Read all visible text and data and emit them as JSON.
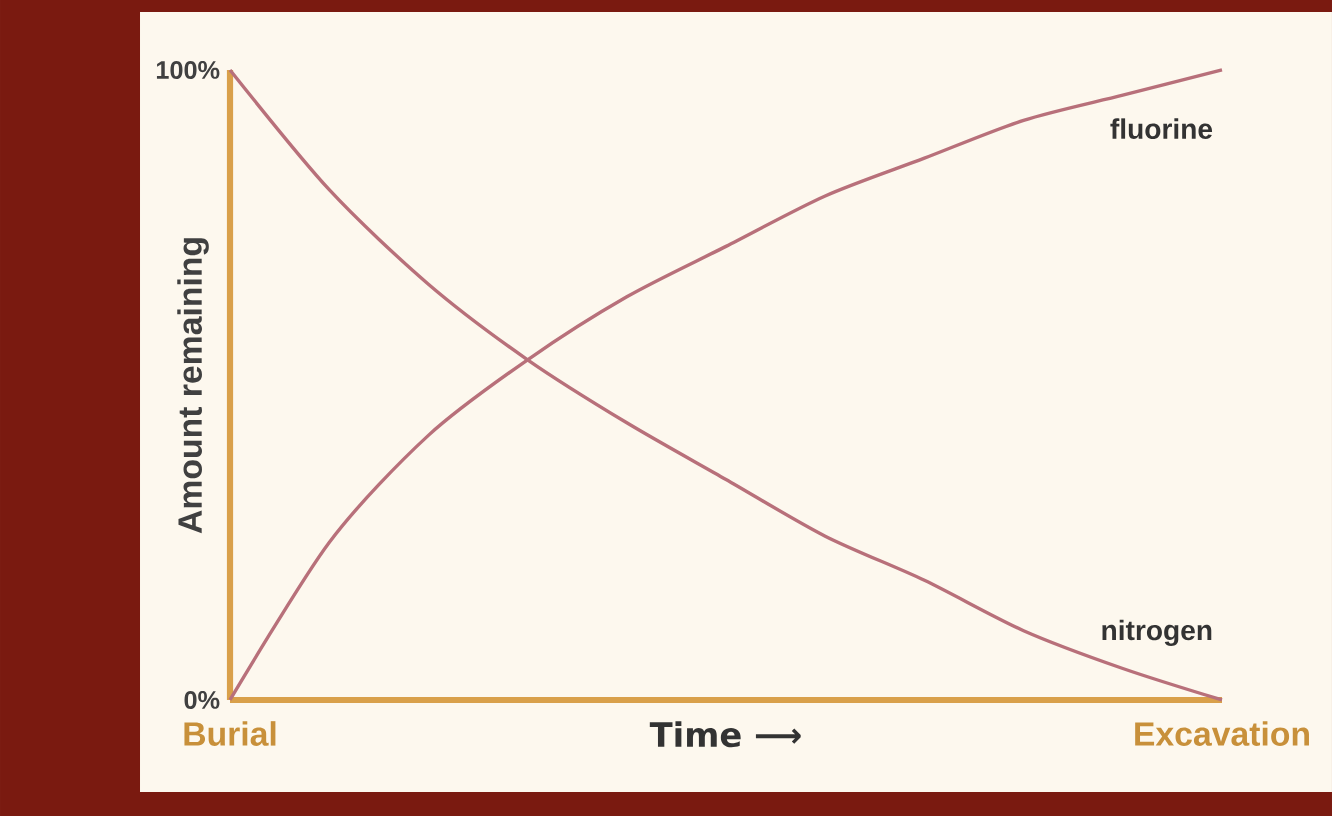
{
  "chart_data": {
    "type": "line",
    "xlabel": "Time ⟶",
    "ylabel": "Amount remaining",
    "ylim": [
      0,
      100
    ],
    "categories": [
      "Burial",
      null,
      null,
      null,
      null,
      null,
      null,
      null,
      null,
      null,
      "Excavation"
    ],
    "yticks": [
      {
        "value": 0,
        "label": "0%"
      },
      {
        "value": 100,
        "label": "100%"
      }
    ],
    "marker": "none",
    "line_style": "solid",
    "grid": false,
    "legend": false,
    "series": [
      {
        "name": "fluorine",
        "color": "#b8707a",
        "values": [
          0,
          25,
          42,
          54,
          64,
          72,
          80,
          86,
          92,
          96,
          100
        ]
      },
      {
        "name": "nitrogen",
        "color": "#b8707a",
        "values": [
          100,
          81,
          66,
          54,
          44,
          35,
          26,
          19,
          11,
          5,
          0
        ]
      }
    ]
  }
}
